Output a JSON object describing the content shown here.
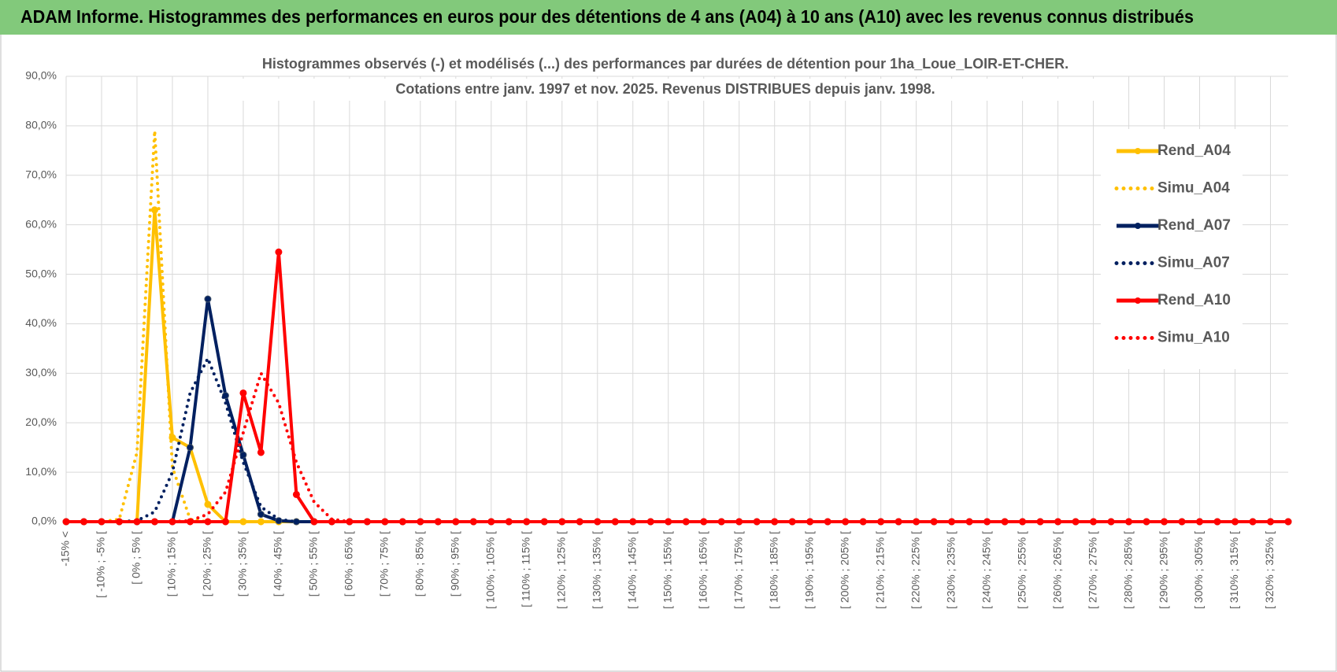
{
  "header": {
    "title": "ADAM Informe. Histogrammes des performances en euros pour des détentions de 4 ans (A04) à 10 ans (A10) avec les revenus connus distribués"
  },
  "chart_data": {
    "type": "line",
    "title_lines": [
      "Histogrammes observés (-) et modélisés (...) des performances par durées de détention pour 1ha_Loue_LOIR-ET-CHER.",
      "Cotations entre janv. 1997 et nov. 2025. Revenus DISTRIBUES depuis janv. 1998."
    ],
    "categories": [
      "-15% <",
      null,
      "[ -10% ; -5% [",
      null,
      "[ 0% ; 5% [",
      null,
      "[ 10% ; 15% [",
      null,
      "[ 20% ; 25% [",
      null,
      "[ 30% ; 35% [",
      null,
      "[ 40% ; 45% [",
      null,
      "[ 50% ; 55% [",
      null,
      "[ 60% ; 65% [",
      null,
      "[ 70% ; 75% [",
      null,
      "[ 80% ; 85% [",
      null,
      "[ 90% ; 95% [",
      null,
      "[ 100% ; 105% [",
      null,
      "[ 110% ; 115% [",
      null,
      "[ 120% ; 125% [",
      null,
      "[ 130% ; 135% [",
      null,
      "[ 140% ; 145% [",
      null,
      "[ 150% ; 155% [",
      null,
      "[ 160% ; 165% [",
      null,
      "[ 170% ; 175% [",
      null,
      "[ 180% ; 185% [",
      null,
      "[ 190% ; 195% [",
      null,
      "[ 200% ; 205% [",
      null,
      "[ 210% ; 215% [",
      null,
      "[ 220% ; 225% [",
      null,
      "[ 230% ; 235% [",
      null,
      "[ 240% ; 245% [",
      null,
      "[ 250% ; 255% [",
      null,
      "[ 260% ; 265% [",
      null,
      "[ 270% ; 275% [",
      null,
      "[ 280% ; 285% [",
      null,
      "[ 290% ; 295% [",
      null,
      "[ 300% ; 305% [",
      null,
      "[ 310% ; 315% [",
      null,
      "[ 320% ; 325% [",
      null
    ],
    "series": [
      {
        "name": "Rend_A04",
        "color": "#ffc000",
        "dash": "solid",
        "markers": true,
        "values": [
          0,
          0,
          0,
          0,
          0,
          63,
          17,
          15,
          3.5,
          0,
          0,
          0,
          0,
          0,
          0,
          0,
          0,
          0,
          0,
          0,
          0,
          0,
          0,
          0,
          0,
          0,
          0,
          0,
          0,
          0,
          0,
          0,
          0,
          0,
          0,
          0,
          0,
          0,
          0,
          0,
          0,
          0,
          0,
          0,
          0,
          0,
          0,
          0,
          0,
          0,
          0,
          0,
          0,
          0,
          0,
          0,
          0,
          0,
          0,
          0,
          0,
          0,
          0,
          0,
          0,
          0,
          0,
          0,
          0,
          0
        ]
      },
      {
        "name": "Simu_A04",
        "color": "#ffc000",
        "dash": "dotted",
        "markers": false,
        "values": [
          0,
          0,
          0,
          0.5,
          14,
          79,
          11,
          0.5,
          0,
          0,
          0,
          0,
          0,
          0,
          0,
          0,
          0,
          0,
          0,
          0,
          0,
          0,
          0,
          0,
          0,
          0,
          0,
          0,
          0,
          0,
          0,
          0,
          0,
          0,
          0,
          0,
          0,
          0,
          0,
          0,
          0,
          0,
          0,
          0,
          0,
          0,
          0,
          0,
          0,
          0,
          0,
          0,
          0,
          0,
          0,
          0,
          0,
          0,
          0,
          0,
          0,
          0,
          0,
          0,
          0,
          0,
          0,
          0,
          0,
          0
        ]
      },
      {
        "name": "Rend_A07",
        "color": "#002060",
        "dash": "solid",
        "markers": true,
        "values": [
          0,
          0,
          0,
          0,
          0,
          0,
          0,
          15,
          45,
          25.5,
          13.5,
          1.5,
          0.2,
          0,
          0,
          0,
          0,
          0,
          0,
          0,
          0,
          0,
          0,
          0,
          0,
          0,
          0,
          0,
          0,
          0,
          0,
          0,
          0,
          0,
          0,
          0,
          0,
          0,
          0,
          0,
          0,
          0,
          0,
          0,
          0,
          0,
          0,
          0,
          0,
          0,
          0,
          0,
          0,
          0,
          0,
          0,
          0,
          0,
          0,
          0,
          0,
          0,
          0,
          0,
          0,
          0,
          0,
          0,
          0,
          0
        ]
      },
      {
        "name": "Simu_A07",
        "color": "#002060",
        "dash": "dotted",
        "markers": false,
        "values": [
          0,
          0,
          0,
          0,
          0.2,
          2,
          10,
          26,
          33,
          24,
          12,
          3,
          0.5,
          0,
          0,
          0,
          0,
          0,
          0,
          0,
          0,
          0,
          0,
          0,
          0,
          0,
          0,
          0,
          0,
          0,
          0,
          0,
          0,
          0,
          0,
          0,
          0,
          0,
          0,
          0,
          0,
          0,
          0,
          0,
          0,
          0,
          0,
          0,
          0,
          0,
          0,
          0,
          0,
          0,
          0,
          0,
          0,
          0,
          0,
          0,
          0,
          0,
          0,
          0,
          0,
          0,
          0,
          0,
          0,
          0
        ]
      },
      {
        "name": "Rend_A10",
        "color": "#ff0000",
        "dash": "solid",
        "markers": true,
        "values": [
          0,
          0,
          0,
          0,
          0,
          0,
          0,
          0,
          0,
          0,
          26,
          14,
          54.5,
          5.5,
          0,
          0,
          0,
          0,
          0,
          0,
          0,
          0,
          0,
          0,
          0,
          0,
          0,
          0,
          0,
          0,
          0,
          0,
          0,
          0,
          0,
          0,
          0,
          0,
          0,
          0,
          0,
          0,
          0,
          0,
          0,
          0,
          0,
          0,
          0,
          0,
          0,
          0,
          0,
          0,
          0,
          0,
          0,
          0,
          0,
          0,
          0,
          0,
          0,
          0,
          0,
          0,
          0,
          0,
          0,
          0
        ]
      },
      {
        "name": "Simu_A10",
        "color": "#ff0000",
        "dash": "dotted",
        "markers": false,
        "values": [
          0,
          0,
          0,
          0,
          0,
          0,
          0,
          0.2,
          1.5,
          6,
          18,
          30,
          24,
          12,
          4,
          0.5,
          0,
          0,
          0,
          0,
          0,
          0,
          0,
          0,
          0,
          0,
          0,
          0,
          0,
          0,
          0,
          0,
          0,
          0,
          0,
          0,
          0,
          0,
          0,
          0,
          0,
          0,
          0,
          0,
          0,
          0,
          0,
          0,
          0,
          0,
          0,
          0,
          0,
          0,
          0,
          0,
          0,
          0,
          0,
          0,
          0,
          0,
          0,
          0,
          0,
          0,
          0,
          0,
          0,
          0
        ]
      }
    ],
    "ylim": [
      0,
      90
    ],
    "yticks": [
      {
        "value": 0,
        "label": "0,0%"
      },
      {
        "value": 10,
        "label": "10,0%"
      },
      {
        "value": 20,
        "label": "20,0%"
      },
      {
        "value": 30,
        "label": "30,0%"
      },
      {
        "value": 40,
        "label": "40,0%"
      },
      {
        "value": 50,
        "label": "50,0%"
      },
      {
        "value": 60,
        "label": "60,0%"
      },
      {
        "value": 70,
        "label": "70,0%"
      },
      {
        "value": 80,
        "label": "80,0%"
      },
      {
        "value": 90,
        "label": "90,0%"
      }
    ],
    "grid": true,
    "legend": "right"
  }
}
